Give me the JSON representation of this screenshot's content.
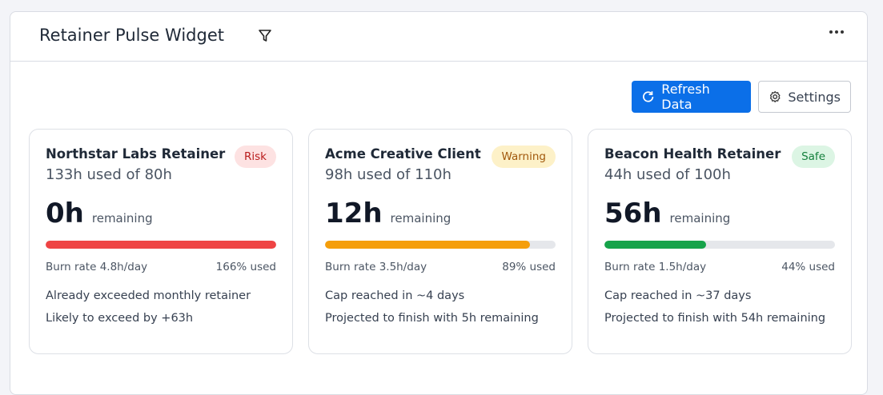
{
  "header": {
    "title": "Retainer Pulse Widget"
  },
  "toolbar": {
    "refresh": "Refresh Data",
    "settings": "Settings"
  },
  "cards": [
    {
      "name": "Northstar Labs Retainer",
      "badge": "Risk",
      "usage": "133h used of 80h",
      "remaining": "0h",
      "remaining_label": "remaining",
      "burn": "Burn rate 4.8h/day",
      "used": {
        "value": 166,
        "label": "166% used"
      },
      "color": "#ef4444",
      "notes": [
        "Already exceeded monthly retainer",
        "Likely to exceed by +63h"
      ]
    },
    {
      "name": "Acme Creative Client",
      "badge": "Warning",
      "usage": "98h used of 110h",
      "remaining": "12h",
      "remaining_label": "remaining",
      "burn": "Burn rate 3.5h/day",
      "used": {
        "value": 89,
        "label": "89% used"
      },
      "color": "#f59e0b",
      "notes": [
        "Cap reached in ~4 days",
        "Projected to finish with 5h remaining"
      ]
    },
    {
      "name": "Beacon Health Retainer",
      "badge": "Safe",
      "usage": "44h used of 100h",
      "remaining": "56h",
      "remaining_label": "remaining",
      "burn": "Burn rate 1.5h/day",
      "used": {
        "value": 44,
        "label": "44% used"
      },
      "color": "#16a34a",
      "notes": [
        "Cap reached in ~37 days",
        "Projected to finish with 54h remaining"
      ]
    }
  ]
}
